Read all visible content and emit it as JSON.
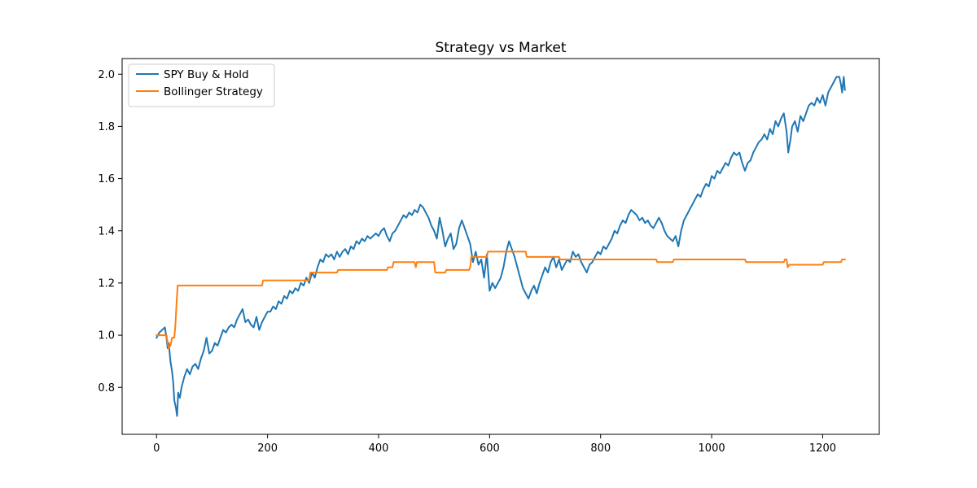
{
  "chart_data": {
    "type": "line",
    "title": "Strategy vs Market",
    "xlabel": "",
    "ylabel": "",
    "xlim": [
      -62,
      1302
    ],
    "ylim": [
      0.62,
      2.06
    ],
    "x_ticks": [
      0,
      200,
      400,
      600,
      800,
      1000,
      1200
    ],
    "y_ticks": [
      0.8,
      1.0,
      1.2,
      1.4,
      1.6,
      1.8,
      2.0
    ],
    "x_tick_labels": [
      "0",
      "200",
      "400",
      "600",
      "800",
      "1000",
      "1200"
    ],
    "y_tick_labels": [
      "0.8",
      "1.0",
      "1.2",
      "1.4",
      "1.6",
      "1.8",
      "2.0"
    ],
    "grid": false,
    "legend_position": "top-left",
    "series": [
      {
        "name": "SPY Buy & Hold",
        "color": "#1f77b4",
        "points": [
          [
            0,
            0.99
          ],
          [
            5,
            1.01
          ],
          [
            10,
            1.02
          ],
          [
            15,
            1.03
          ],
          [
            18,
            0.99
          ],
          [
            20,
            0.95
          ],
          [
            22,
            0.97
          ],
          [
            25,
            0.9
          ],
          [
            28,
            0.86
          ],
          [
            30,
            0.82
          ],
          [
            32,
            0.75
          ],
          [
            35,
            0.72
          ],
          [
            37,
            0.69
          ],
          [
            39,
            0.78
          ],
          [
            42,
            0.76
          ],
          [
            45,
            0.8
          ],
          [
            50,
            0.84
          ],
          [
            55,
            0.87
          ],
          [
            60,
            0.85
          ],
          [
            65,
            0.88
          ],
          [
            70,
            0.89
          ],
          [
            75,
            0.87
          ],
          [
            80,
            0.91
          ],
          [
            85,
            0.94
          ],
          [
            90,
            0.99
          ],
          [
            95,
            0.93
          ],
          [
            100,
            0.94
          ],
          [
            105,
            0.97
          ],
          [
            110,
            0.96
          ],
          [
            115,
            0.99
          ],
          [
            120,
            1.02
          ],
          [
            125,
            1.01
          ],
          [
            130,
            1.03
          ],
          [
            135,
            1.04
          ],
          [
            140,
            1.03
          ],
          [
            145,
            1.06
          ],
          [
            150,
            1.08
          ],
          [
            155,
            1.1
          ],
          [
            160,
            1.05
          ],
          [
            165,
            1.06
          ],
          [
            170,
            1.04
          ],
          [
            175,
            1.03
          ],
          [
            180,
            1.07
          ],
          [
            185,
            1.02
          ],
          [
            190,
            1.05
          ],
          [
            195,
            1.07
          ],
          [
            200,
            1.09
          ],
          [
            205,
            1.09
          ],
          [
            210,
            1.11
          ],
          [
            215,
            1.1
          ],
          [
            220,
            1.13
          ],
          [
            225,
            1.12
          ],
          [
            230,
            1.15
          ],
          [
            235,
            1.14
          ],
          [
            240,
            1.17
          ],
          [
            245,
            1.16
          ],
          [
            250,
            1.18
          ],
          [
            255,
            1.17
          ],
          [
            260,
            1.2
          ],
          [
            265,
            1.19
          ],
          [
            270,
            1.22
          ],
          [
            275,
            1.2
          ],
          [
            280,
            1.24
          ],
          [
            285,
            1.22
          ],
          [
            290,
            1.26
          ],
          [
            295,
            1.29
          ],
          [
            300,
            1.28
          ],
          [
            305,
            1.31
          ],
          [
            310,
            1.3
          ],
          [
            315,
            1.31
          ],
          [
            320,
            1.29
          ],
          [
            325,
            1.32
          ],
          [
            330,
            1.3
          ],
          [
            335,
            1.32
          ],
          [
            340,
            1.33
          ],
          [
            345,
            1.31
          ],
          [
            350,
            1.34
          ],
          [
            355,
            1.33
          ],
          [
            360,
            1.36
          ],
          [
            365,
            1.35
          ],
          [
            370,
            1.37
          ],
          [
            375,
            1.36
          ],
          [
            380,
            1.38
          ],
          [
            385,
            1.37
          ],
          [
            390,
            1.38
          ],
          [
            395,
            1.39
          ],
          [
            400,
            1.38
          ],
          [
            405,
            1.4
          ],
          [
            410,
            1.41
          ],
          [
            415,
            1.38
          ],
          [
            420,
            1.36
          ],
          [
            425,
            1.39
          ],
          [
            430,
            1.4
          ],
          [
            435,
            1.42
          ],
          [
            440,
            1.44
          ],
          [
            445,
            1.46
          ],
          [
            450,
            1.45
          ],
          [
            455,
            1.47
          ],
          [
            460,
            1.46
          ],
          [
            465,
            1.48
          ],
          [
            470,
            1.47
          ],
          [
            475,
            1.5
          ],
          [
            480,
            1.49
          ],
          [
            485,
            1.47
          ],
          [
            490,
            1.45
          ],
          [
            495,
            1.42
          ],
          [
            500,
            1.4
          ],
          [
            505,
            1.37
          ],
          [
            510,
            1.45
          ],
          [
            515,
            1.4
          ],
          [
            520,
            1.34
          ],
          [
            525,
            1.37
          ],
          [
            530,
            1.39
          ],
          [
            535,
            1.33
          ],
          [
            540,
            1.35
          ],
          [
            545,
            1.41
          ],
          [
            550,
            1.44
          ],
          [
            555,
            1.41
          ],
          [
            560,
            1.38
          ],
          [
            565,
            1.35
          ],
          [
            570,
            1.28
          ],
          [
            575,
            1.32
          ],
          [
            580,
            1.27
          ],
          [
            585,
            1.29
          ],
          [
            590,
            1.22
          ],
          [
            595,
            1.31
          ],
          [
            600,
            1.17
          ],
          [
            605,
            1.2
          ],
          [
            610,
            1.18
          ],
          [
            615,
            1.2
          ],
          [
            620,
            1.22
          ],
          [
            625,
            1.26
          ],
          [
            630,
            1.32
          ],
          [
            635,
            1.36
          ],
          [
            640,
            1.33
          ],
          [
            645,
            1.3
          ],
          [
            650,
            1.26
          ],
          [
            655,
            1.22
          ],
          [
            660,
            1.18
          ],
          [
            665,
            1.16
          ],
          [
            670,
            1.14
          ],
          [
            675,
            1.17
          ],
          [
            680,
            1.19
          ],
          [
            685,
            1.16
          ],
          [
            690,
            1.2
          ],
          [
            695,
            1.23
          ],
          [
            700,
            1.26
          ],
          [
            705,
            1.24
          ],
          [
            710,
            1.28
          ],
          [
            715,
            1.3
          ],
          [
            720,
            1.26
          ],
          [
            725,
            1.29
          ],
          [
            730,
            1.25
          ],
          [
            735,
            1.27
          ],
          [
            740,
            1.29
          ],
          [
            745,
            1.28
          ],
          [
            750,
            1.32
          ],
          [
            755,
            1.3
          ],
          [
            760,
            1.31
          ],
          [
            765,
            1.28
          ],
          [
            770,
            1.26
          ],
          [
            775,
            1.24
          ],
          [
            780,
            1.27
          ],
          [
            785,
            1.28
          ],
          [
            790,
            1.3
          ],
          [
            795,
            1.32
          ],
          [
            800,
            1.31
          ],
          [
            805,
            1.34
          ],
          [
            810,
            1.33
          ],
          [
            815,
            1.35
          ],
          [
            820,
            1.37
          ],
          [
            825,
            1.4
          ],
          [
            830,
            1.39
          ],
          [
            835,
            1.42
          ],
          [
            840,
            1.44
          ],
          [
            845,
            1.43
          ],
          [
            850,
            1.46
          ],
          [
            855,
            1.48
          ],
          [
            860,
            1.47
          ],
          [
            865,
            1.46
          ],
          [
            870,
            1.44
          ],
          [
            875,
            1.45
          ],
          [
            880,
            1.43
          ],
          [
            885,
            1.44
          ],
          [
            890,
            1.42
          ],
          [
            895,
            1.41
          ],
          [
            900,
            1.43
          ],
          [
            905,
            1.45
          ],
          [
            910,
            1.43
          ],
          [
            915,
            1.4
          ],
          [
            920,
            1.38
          ],
          [
            925,
            1.37
          ],
          [
            930,
            1.36
          ],
          [
            935,
            1.38
          ],
          [
            940,
            1.34
          ],
          [
            945,
            1.4
          ],
          [
            950,
            1.44
          ],
          [
            955,
            1.46
          ],
          [
            960,
            1.48
          ],
          [
            965,
            1.5
          ],
          [
            970,
            1.52
          ],
          [
            975,
            1.54
          ],
          [
            980,
            1.53
          ],
          [
            985,
            1.56
          ],
          [
            990,
            1.58
          ],
          [
            995,
            1.57
          ],
          [
            1000,
            1.61
          ],
          [
            1005,
            1.6
          ],
          [
            1010,
            1.63
          ],
          [
            1015,
            1.62
          ],
          [
            1020,
            1.64
          ],
          [
            1025,
            1.66
          ],
          [
            1030,
            1.65
          ],
          [
            1035,
            1.68
          ],
          [
            1040,
            1.7
          ],
          [
            1045,
            1.69
          ],
          [
            1050,
            1.7
          ],
          [
            1055,
            1.66
          ],
          [
            1060,
            1.63
          ],
          [
            1065,
            1.66
          ],
          [
            1070,
            1.67
          ],
          [
            1075,
            1.7
          ],
          [
            1080,
            1.72
          ],
          [
            1085,
            1.74
          ],
          [
            1090,
            1.75
          ],
          [
            1095,
            1.77
          ],
          [
            1100,
            1.75
          ],
          [
            1105,
            1.79
          ],
          [
            1110,
            1.77
          ],
          [
            1115,
            1.82
          ],
          [
            1120,
            1.8
          ],
          [
            1125,
            1.83
          ],
          [
            1130,
            1.85
          ],
          [
            1135,
            1.78
          ],
          [
            1138,
            1.7
          ],
          [
            1142,
            1.75
          ],
          [
            1145,
            1.8
          ],
          [
            1150,
            1.82
          ],
          [
            1155,
            1.78
          ],
          [
            1160,
            1.84
          ],
          [
            1165,
            1.82
          ],
          [
            1170,
            1.85
          ],
          [
            1175,
            1.88
          ],
          [
            1180,
            1.89
          ],
          [
            1185,
            1.88
          ],
          [
            1190,
            1.91
          ],
          [
            1195,
            1.89
          ],
          [
            1200,
            1.92
          ],
          [
            1205,
            1.88
          ],
          [
            1210,
            1.93
          ],
          [
            1215,
            1.95
          ],
          [
            1220,
            1.97
          ],
          [
            1225,
            1.99
          ],
          [
            1230,
            1.99
          ],
          [
            1233,
            1.96
          ],
          [
            1235,
            1.93
          ],
          [
            1238,
            1.99
          ],
          [
            1240,
            1.94
          ]
        ]
      },
      {
        "name": "Bollinger Strategy",
        "color": "#ff7f0e",
        "points": [
          [
            0,
            1.0
          ],
          [
            18,
            1.0
          ],
          [
            20,
            0.97
          ],
          [
            22,
            0.95
          ],
          [
            25,
            0.96
          ],
          [
            28,
            0.99
          ],
          [
            32,
            0.99
          ],
          [
            34,
            1.04
          ],
          [
            36,
            1.12
          ],
          [
            38,
            1.19
          ],
          [
            190,
            1.19
          ],
          [
            192,
            1.21
          ],
          [
            275,
            1.21
          ],
          [
            277,
            1.24
          ],
          [
            325,
            1.24
          ],
          [
            327,
            1.25
          ],
          [
            415,
            1.25
          ],
          [
            417,
            1.26
          ],
          [
            425,
            1.26
          ],
          [
            427,
            1.28
          ],
          [
            465,
            1.28
          ],
          [
            467,
            1.26
          ],
          [
            469,
            1.28
          ],
          [
            500,
            1.28
          ],
          [
            502,
            1.24
          ],
          [
            520,
            1.24
          ],
          [
            522,
            1.25
          ],
          [
            563,
            1.25
          ],
          [
            565,
            1.26
          ],
          [
            567,
            1.3
          ],
          [
            595,
            1.3
          ],
          [
            597,
            1.32
          ],
          [
            665,
            1.32
          ],
          [
            667,
            1.3
          ],
          [
            725,
            1.3
          ],
          [
            727,
            1.29
          ],
          [
            900,
            1.29
          ],
          [
            902,
            1.28
          ],
          [
            930,
            1.28
          ],
          [
            932,
            1.29
          ],
          [
            945,
            1.29
          ],
          [
            947,
            1.29
          ],
          [
            1060,
            1.29
          ],
          [
            1062,
            1.28
          ],
          [
            1130,
            1.28
          ],
          [
            1132,
            1.29
          ],
          [
            1135,
            1.29
          ],
          [
            1137,
            1.26
          ],
          [
            1140,
            1.27
          ],
          [
            1200,
            1.27
          ],
          [
            1202,
            1.28
          ],
          [
            1233,
            1.28
          ],
          [
            1235,
            1.29
          ],
          [
            1240,
            1.29
          ]
        ]
      }
    ]
  }
}
